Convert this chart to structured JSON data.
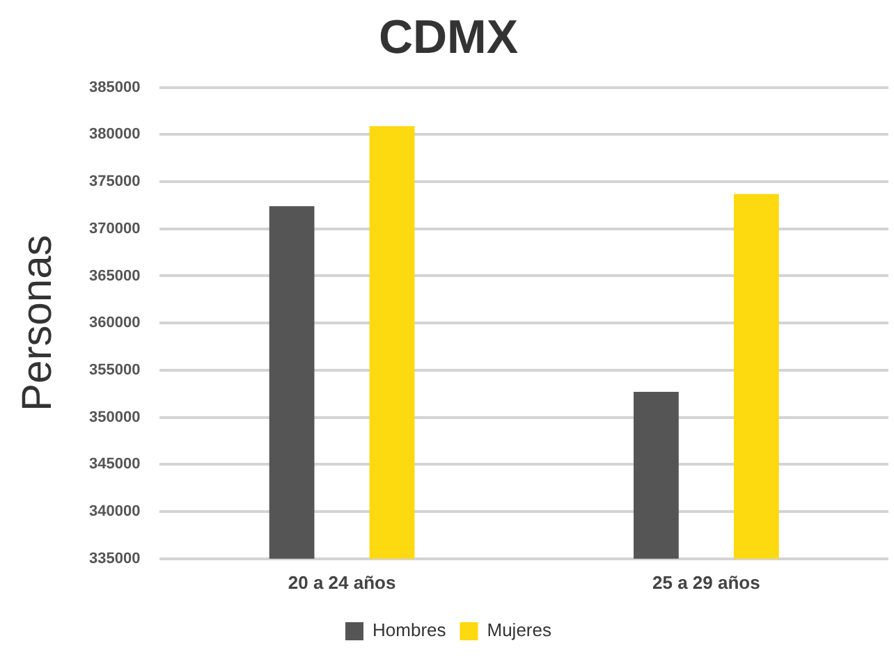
{
  "chart_data": {
    "type": "bar",
    "title": "CDMX",
    "ylabel": "Personas",
    "categories": [
      "20 a 24 años",
      "25 a 29 años"
    ],
    "series": [
      {
        "name": "Hombres",
        "color": "#555555",
        "values": [
          372400,
          352700
        ]
      },
      {
        "name": "Mujeres",
        "color": "#fdd910",
        "values": [
          380900,
          373700
        ]
      }
    ],
    "ylim": [
      335000,
      385000
    ],
    "yticks": [
      335000,
      340000,
      345000,
      350000,
      355000,
      360000,
      365000,
      370000,
      375000,
      380000,
      385000
    ],
    "grid": "y",
    "legend": "bottom"
  }
}
